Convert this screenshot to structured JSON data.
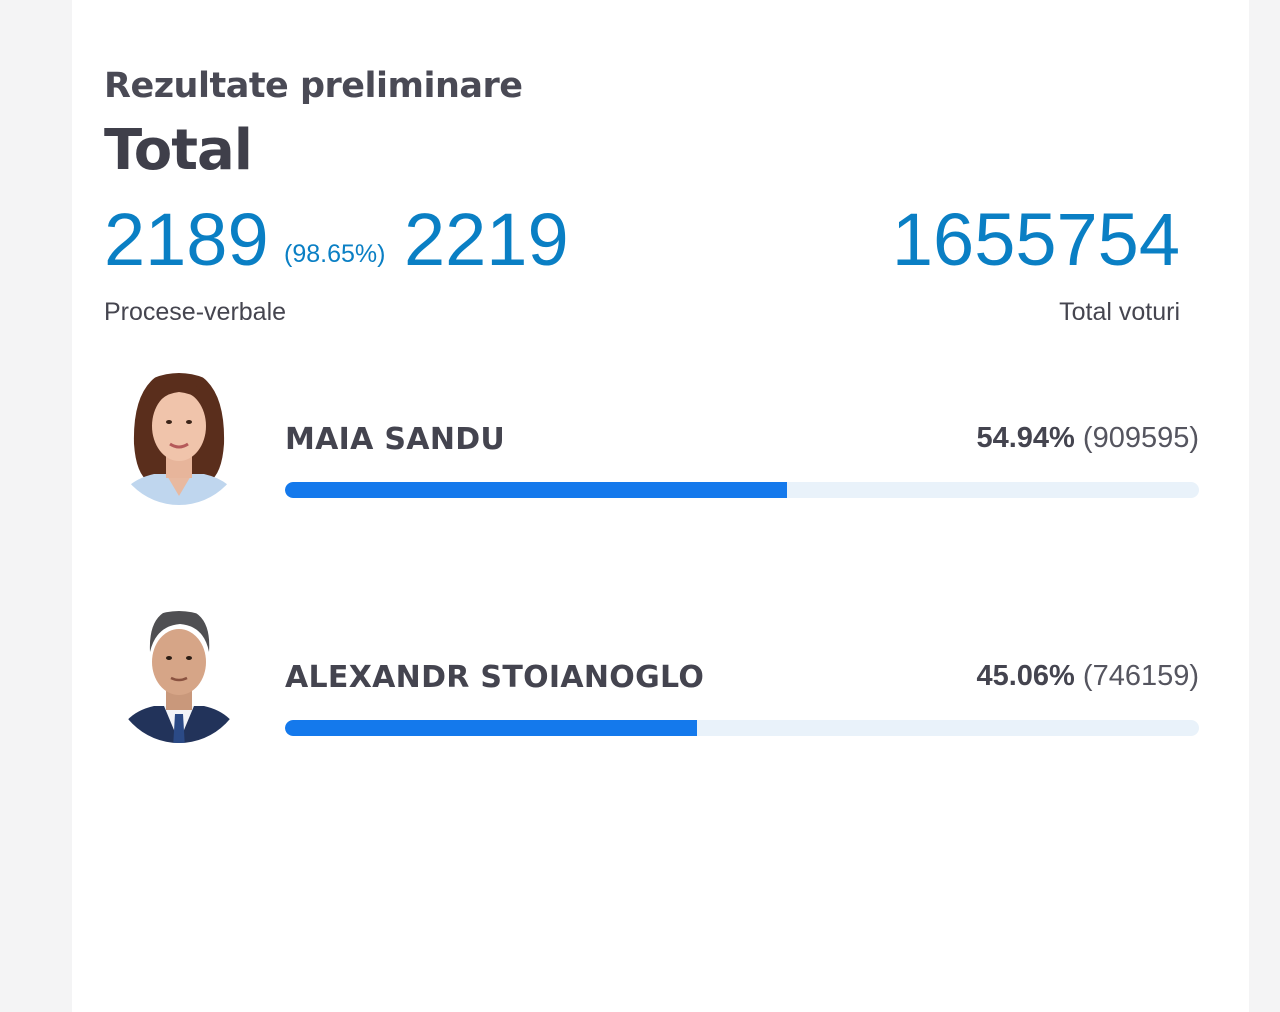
{
  "header": {
    "subtitle": "Rezultate preliminare",
    "title": "Total"
  },
  "stats": {
    "counted_reports": "2189",
    "counted_percent": "(98.65%)",
    "total_reports": "2219",
    "total_votes": "1655754",
    "reports_label": "Procese-verbale",
    "votes_label": "Total voturi"
  },
  "candidates": [
    {
      "name": "MAIA SANDU",
      "percent_text": "54.94%",
      "votes_text": "(909595)",
      "share": 0.5494,
      "bar_color": "#1479ec"
    },
    {
      "name": "ALEXANDR STOIANOGLO",
      "percent_text": "45.06%",
      "votes_text": "(746159)",
      "share": 0.4506,
      "bar_color": "#1479ec"
    }
  ]
}
